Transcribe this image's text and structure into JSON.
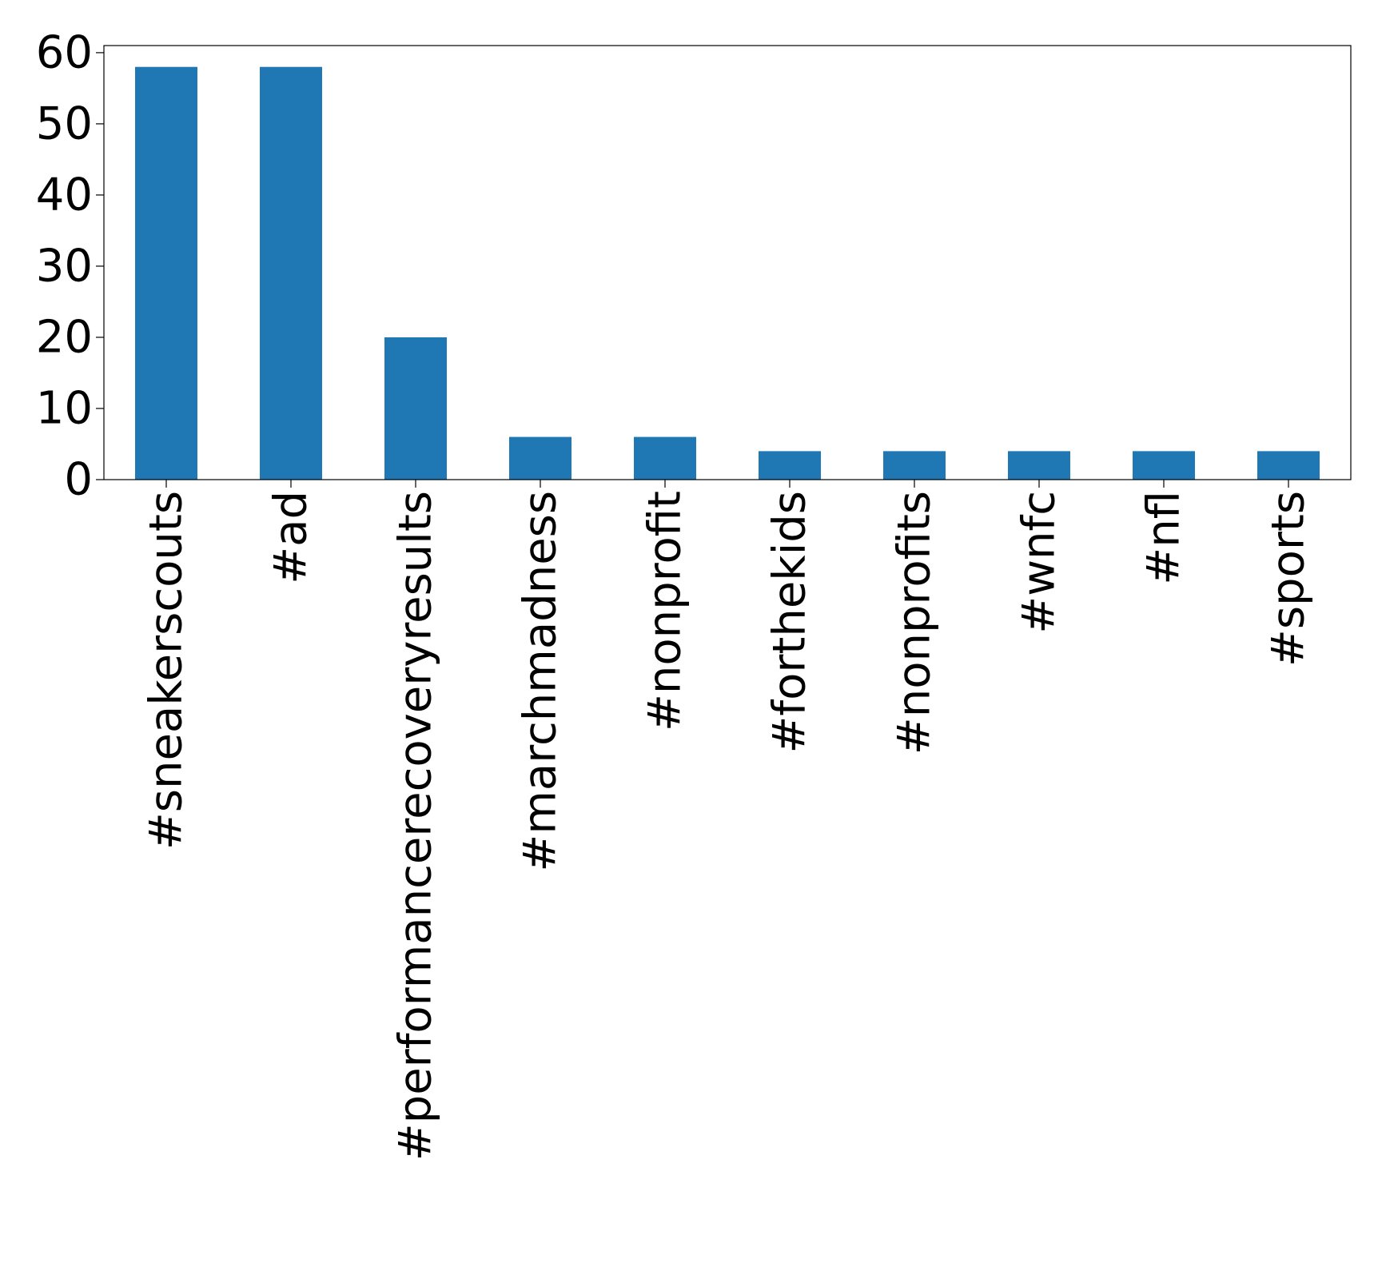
{
  "chart_data": {
    "type": "bar",
    "title": "",
    "xlabel": "",
    "ylabel": "",
    "categories": [
      "#sneakerscouts",
      "#ad",
      "#performancerecoveryresults",
      "#marchmadness",
      "#nonprofit",
      "#forthekids",
      "#nonprofits",
      "#wnfc",
      "#nfl",
      "#sports"
    ],
    "values": [
      58,
      58,
      20,
      6,
      6,
      4,
      4,
      4,
      4,
      4
    ],
    "ylim": [
      0,
      61
    ],
    "yticks": [
      0,
      10,
      20,
      30,
      40,
      50,
      60
    ],
    "grid": false,
    "legend": "none",
    "bar_color": "#1f77b4"
  }
}
